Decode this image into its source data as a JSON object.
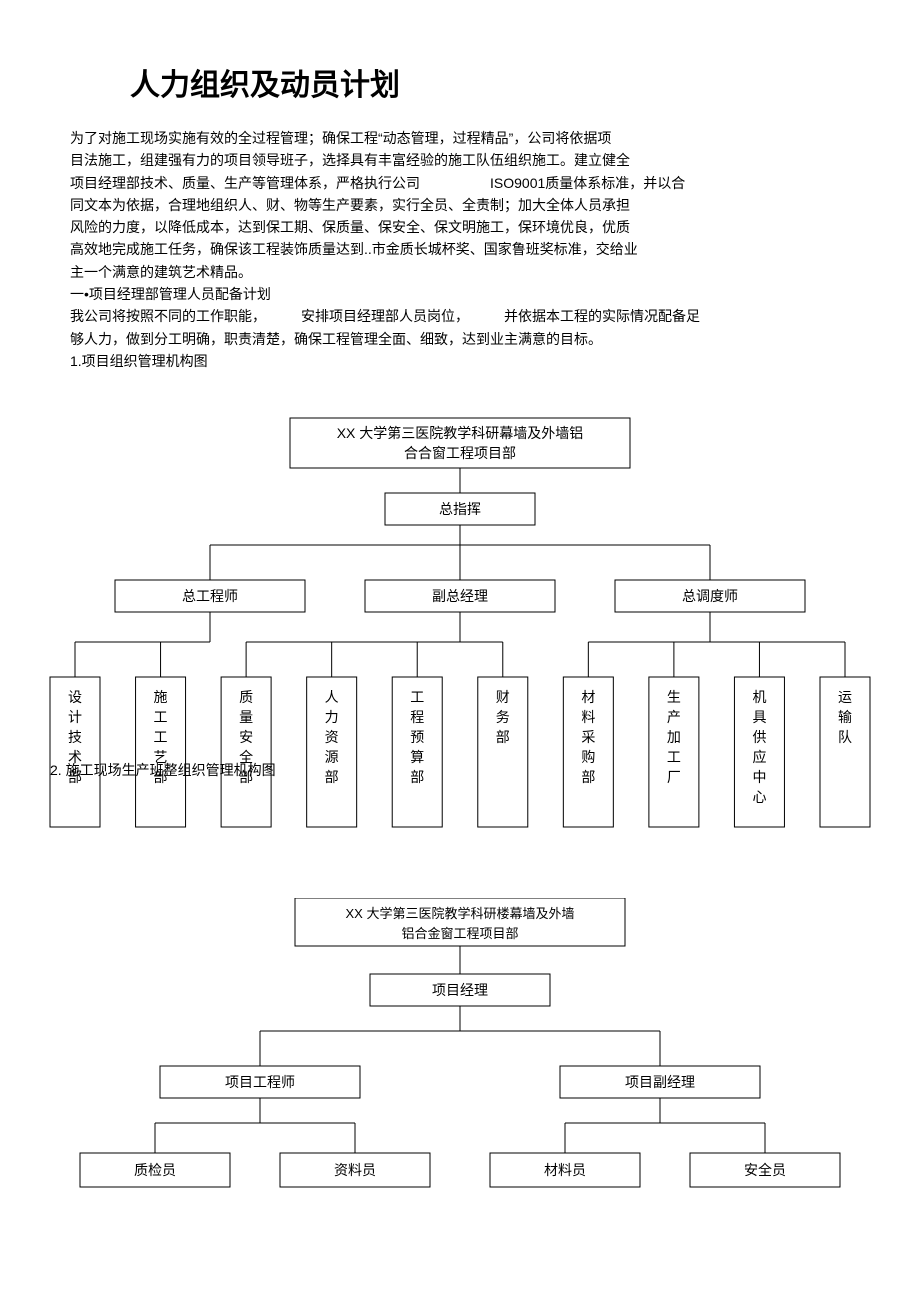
{
  "title": "人力组织及动员计划",
  "paragraphs": [
    "为了对施工现场实施有效的全过程管理；确保工程“动态管理，过程精品”，公司将依据项",
    "目法施工，组建强有力的项目领导班子，选择具有丰富经验的施工队伍组织施工。建立健全",
    "项目经理部技术、质量、生产等管理体系，严格执行公司　　　　　ISO9001质量体系标准，并以合",
    "同文本为依据，合理地组织人、财、物等生产要素，实行全员、全责制；加大全体人员承担",
    "风险的力度，以降低成本，达到保工期、保质量、保安全、保文明施工，保环境优良，优质",
    "高效地完成施工任务，确保该工程装饰质量达到..市金质长城杯奖、国家鲁班奖标准，交给业",
    "主一个满意的建筑艺术精品。",
    "一•项目经理部管理人员配备计划",
    "我公司将按照不同的工作职能，　　　安排项目经理部人员岗位，　　　并依据本工程的实际情况配备足",
    "够人力，做到分工明确，职责清楚，确保工程管理全面、细致，达到业主满意的目标。",
    "1.项目组织管理机构图"
  ],
  "chart1": {
    "top1": "XX  大学第三医院教学科研幕墙及外墙铝",
    "top2": "合合窗工程项目部",
    "cmd": "总指挥",
    "l2": [
      "总工程师",
      "副总经理",
      "总调度师"
    ],
    "leaves": [
      "设计技术部",
      "施工工艺部",
      "质量安全部",
      "人力资源部",
      "工程预算部",
      "财务部",
      "材料采购部",
      "生产加工厂",
      "机具供应中心",
      "运输队"
    ],
    "overlay": "2.  施工现场生产班整组织管理机构图"
  },
  "chart2": {
    "top1": "XX  大学第三医院教学科研楼幕墙及外墙",
    "top2": "铝合金窗工程项目部",
    "mgr": "项目经理",
    "l2": [
      "项目工程师",
      "项目副经理"
    ],
    "leaves": [
      "质检员",
      "资料员",
      "材料员",
      "安全员"
    ]
  },
  "colors": {
    "stroke": "#000000",
    "bg": "#ffffff"
  }
}
